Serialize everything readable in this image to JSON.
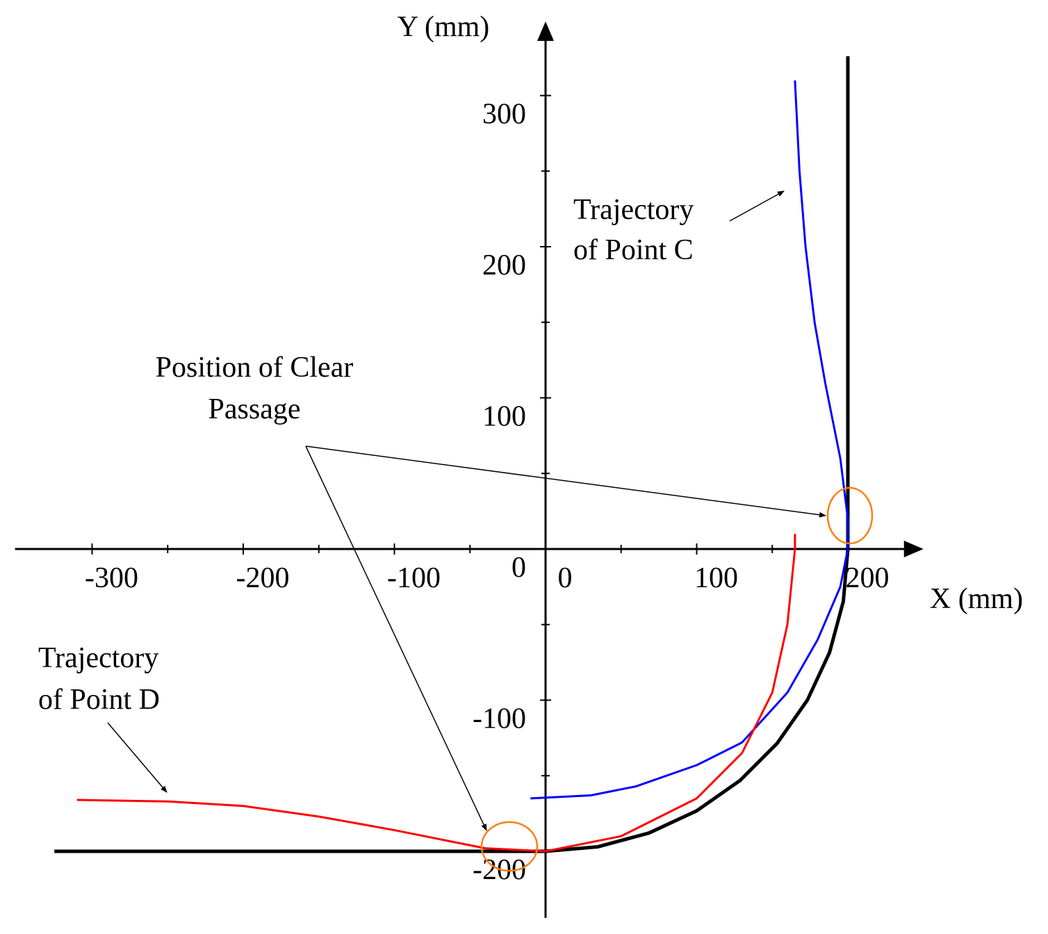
{
  "chart_data": {
    "type": "line",
    "x_label": "X (mm)",
    "y_label": "Y (mm)",
    "xlim": [
      -351,
      250
    ],
    "ylim": [
      -244,
      349
    ],
    "xticks": [
      -300,
      -200,
      -100,
      0,
      100,
      200
    ],
    "yticks": [
      -200,
      -100,
      0,
      100,
      200,
      300
    ],
    "xminorticks": [
      -250,
      -150,
      -50,
      50,
      150
    ],
    "yminorticks": [
      -150,
      -50,
      50,
      150,
      250
    ],
    "annotations": [
      {
        "lines": [
          "Trajectory",
          "of Point C"
        ]
      },
      {
        "lines": [
          "Position of Clear",
          "Passage"
        ]
      },
      {
        "lines": [
          "Trajectory",
          "of Point D"
        ]
      }
    ],
    "series": [
      {
        "color": "#000000",
        "x": [
          -325,
          0,
          34.7,
          68.4,
          100,
          128.6,
          153.2,
          173.2,
          187.9,
          197,
          200,
          200
        ],
        "values": [
          -200,
          -200,
          -197,
          -187.9,
          -173.2,
          -153.2,
          -128.6,
          -100,
          -68.4,
          -34.7,
          0,
          326
        ]
      },
      {
        "color": "#0000ff",
        "x": [
          -10,
          30,
          60,
          100,
          130,
          160,
          180,
          195,
          200,
          200,
          195,
          185,
          178,
          172,
          168,
          165
        ],
        "values": [
          -165,
          -163,
          -157,
          -143,
          -128,
          -95,
          -60,
          -25,
          0,
          20,
          60,
          110,
          150,
          200,
          250,
          310
        ]
      },
      {
        "color": "#ff0000",
        "x": [
          -310,
          -250,
          -200,
          -150,
          -100,
          -40,
          0,
          50,
          100,
          130,
          150,
          160,
          165,
          165
        ],
        "values": [
          -166,
          -167,
          -170,
          -177,
          -186,
          -198,
          -200,
          -190,
          -165,
          -135,
          -95,
          -50,
          0,
          10
        ]
      }
    ]
  }
}
